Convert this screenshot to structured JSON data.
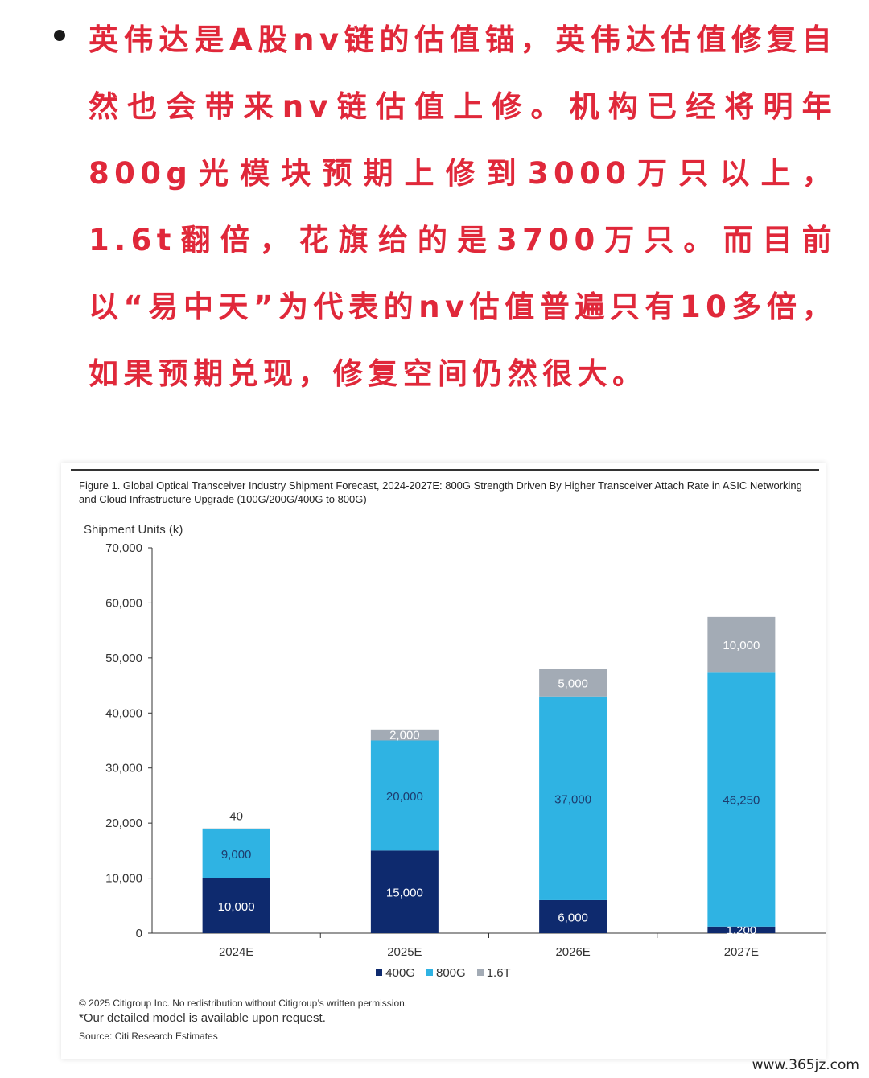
{
  "post": {
    "text": "英伟达是A股nv链的估值锚，英伟达估值修复自然也会带来nv链估值上修。机构已经将明年800g光模块预期上修到3000万只以上，1.6t翻倍，花旗给的是3700万只。而目前以“易中天”为代表的nv估值普遍只有10多倍，如果预期兑现，修复空间仍然很大。"
  },
  "figure": {
    "copyright": "© 2025 Citigroup Inc. No redistribution without Citigroup’s written permission.",
    "model_note": "*Our detailed model is available upon request.",
    "source": "Source: Citi Research Estimates"
  },
  "chart_data": {
    "type": "bar",
    "stacked": true,
    "title": "Figure 1. Global Optical Transceiver Industry Shipment Forecast, 2024-2027E: 800G Strength Driven By Higher Transceiver Attach Rate in ASIC Networking and Cloud Infrastructure Upgrade (100G/200G/400G to 800G)",
    "ylabel": "Shipment Units (k)",
    "xlabel": "",
    "ylim": [
      0,
      70000
    ],
    "yticks": [
      0,
      10000,
      20000,
      30000,
      40000,
      50000,
      60000,
      70000
    ],
    "ytick_labels": [
      "0",
      "10,000",
      "20,000",
      "30,000",
      "40,000",
      "50,000",
      "60,000",
      "70,000"
    ],
    "categories": [
      "2024E",
      "2025E",
      "2026E",
      "2027E"
    ],
    "series": [
      {
        "name": "400G",
        "color": "#0e2a6e",
        "values": [
          10000,
          15000,
          6000,
          1200
        ],
        "labels": [
          "10,000",
          "15,000",
          "6,000",
          "1,200"
        ]
      },
      {
        "name": "800G",
        "color": "#2fb3e3",
        "values": [
          9000,
          20000,
          37000,
          46250
        ],
        "labels": [
          "9,000",
          "20,000",
          "37,000",
          "46,250"
        ]
      },
      {
        "name": "1.6T",
        "color": "#a3abb5",
        "values": [
          40,
          2000,
          5000,
          10000
        ],
        "labels": [
          "40",
          "2,000",
          "5,000",
          "10,000"
        ]
      }
    ],
    "grid": false,
    "legend": "bottom"
  },
  "watermark": "www.365jz.com"
}
